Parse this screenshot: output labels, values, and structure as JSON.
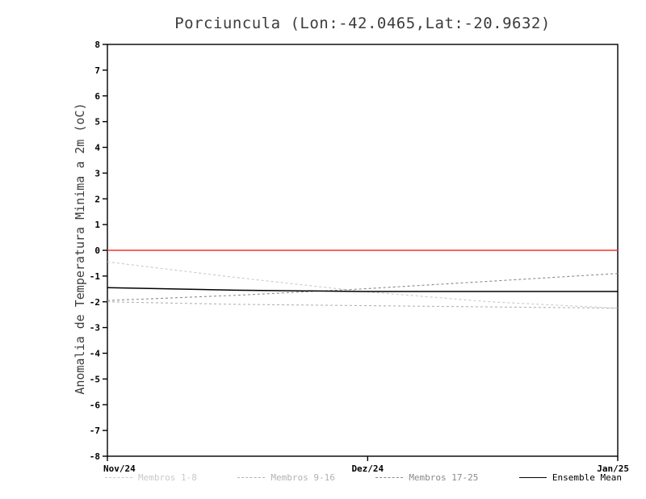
{
  "title": "Porciuncula (Lon:-42.0465,Lat:-20.9632)",
  "colors": {
    "zero_line": "#f1352b",
    "axis": "#000000",
    "title_text": "#3c3c3c",
    "members_1_8": "#c9c9c9",
    "members_9_16": "#b2b2b2",
    "members_17_25": "#8a8a8a",
    "ensemble_mean": "#000000"
  },
  "chart_data": {
    "type": "line",
    "title": "Porciuncula (Lon:-42.0465,Lat:-20.9632)",
    "xlabel": "",
    "ylabel": "Anomalia de Temperatura Minima a 2m (oC)",
    "ylim": [
      -8,
      8
    ],
    "yticks": [
      -8,
      -7,
      -6,
      -5,
      -4,
      -3,
      -2,
      -1,
      0,
      1,
      2,
      3,
      4,
      5,
      6,
      7,
      8
    ],
    "xticks": [
      {
        "pos": 0.0,
        "label": "Nov/24"
      },
      {
        "pos": 0.51,
        "label": "Dez/24"
      },
      {
        "pos": 1.0,
        "label": "Jan/25"
      }
    ],
    "grid": false,
    "legend_position": "bottom",
    "zero_line": {
      "value": 0,
      "color": "#f1352b"
    },
    "x": [
      0,
      0.25,
      0.5,
      0.75,
      1
    ],
    "x_unit": "fraction of Nov/24 to Jan/25",
    "series": [
      {
        "name": "Membros 1-8",
        "color": "#c9c9c9",
        "style": "dashed",
        "values": [
          -0.45,
          -1.05,
          -1.6,
          -2.0,
          -2.25
        ]
      },
      {
        "name": "Membros 9-16",
        "color": "#b2b2b2",
        "style": "dashed",
        "values": [
          -2.0,
          -2.1,
          -2.15,
          -2.2,
          -2.25
        ]
      },
      {
        "name": "Membros 17-25",
        "color": "#8a8a8a",
        "style": "dashed",
        "values": [
          -1.95,
          -1.75,
          -1.5,
          -1.2,
          -0.9
        ]
      },
      {
        "name": "Ensemble Mean",
        "color": "#000000",
        "style": "solid",
        "values": [
          -1.45,
          -1.55,
          -1.6,
          -1.6,
          -1.6
        ]
      }
    ]
  }
}
